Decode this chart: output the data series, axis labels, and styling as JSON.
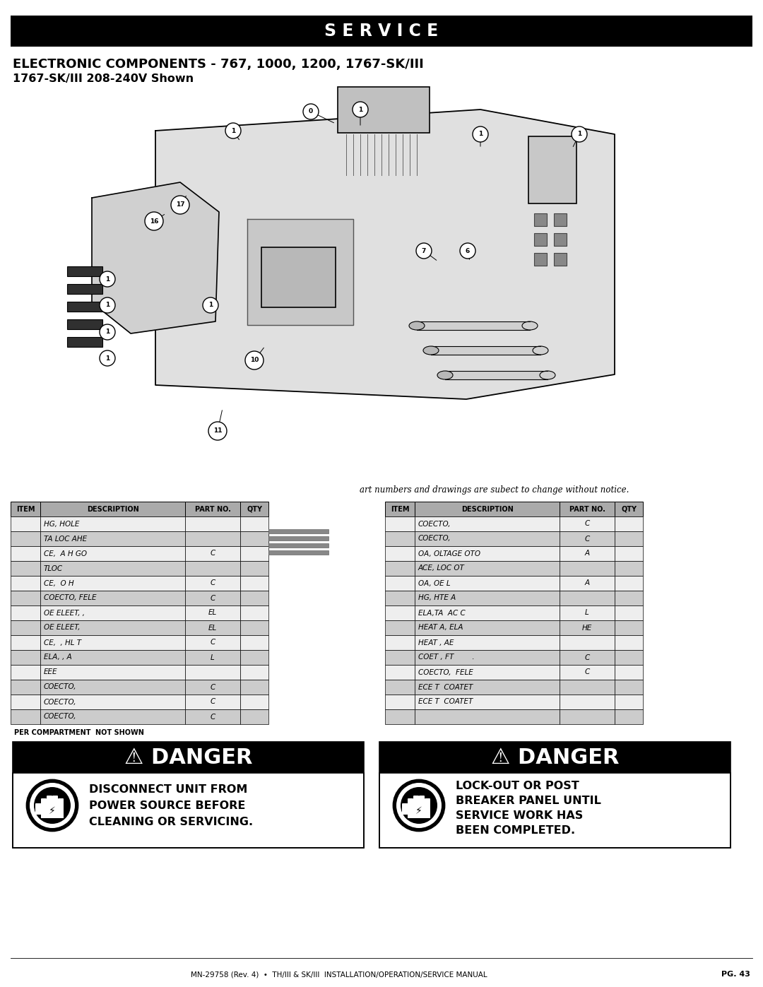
{
  "page_bg": "#ffffff",
  "header_bg": "#000000",
  "header_text": "S E R V I C E",
  "header_text_color": "#ffffff",
  "title_line1": "ELECTRONIC COMPONENTS - 767, 1000, 1200, 1767-SK/III",
  "title_line2": "1767-SK/III 208-240V Shown",
  "notice_text": "art numbers and drawings are subect to change without notice.",
  "table_header_bg": "#aaaaaa",
  "table_header_text_color": "#000000",
  "table_row_even_bg": "#cccccc",
  "table_row_odd_bg": "#eeeeee",
  "table_cols_left": [
    "ITEM",
    "DESCRIPTION",
    "PART NO.",
    "QTY"
  ],
  "table_cols_right": [
    "ITEM",
    "DESCRIPTION",
    "PART NO.",
    "QTY"
  ],
  "table_rows_left": [
    [
      "",
      "HG, HOLE",
      "",
      ""
    ],
    [
      "",
      "TA LOC AHE",
      "",
      ""
    ],
    [
      "",
      "CE,  A H GO",
      "C",
      ""
    ],
    [
      "",
      "TLOC",
      "",
      ""
    ],
    [
      "",
      "CE,  O H",
      "C",
      ""
    ],
    [
      "",
      "COECTO, FELE",
      "C",
      ""
    ],
    [
      "",
      "OE ELEET, ,",
      "EL",
      ""
    ],
    [
      "",
      "OE ELEET,",
      "EL",
      ""
    ],
    [
      "",
      "CE,  , HL T",
      "C",
      ""
    ],
    [
      "",
      "ELA, , A",
      "L",
      ""
    ],
    [
      "",
      "EEE",
      "",
      ""
    ],
    [
      "",
      "COECTO,",
      "C",
      ""
    ],
    [
      "",
      "COECTO,",
      "C",
      ""
    ],
    [
      "",
      "COECTO,",
      "C",
      ""
    ]
  ],
  "table_rows_right": [
    [
      "",
      "COECTO,",
      "C",
      ""
    ],
    [
      "",
      "COECTO,",
      "C",
      ""
    ],
    [
      "",
      "OA, OLTAGE OTO",
      "A",
      ""
    ],
    [
      "",
      "ACE, LOC OT",
      "",
      ""
    ],
    [
      "",
      "OA, OE L",
      "A",
      ""
    ],
    [
      "",
      "HG, HTE A",
      "",
      ""
    ],
    [
      "",
      "ELA,TA  AC C",
      "L",
      ""
    ],
    [
      "",
      "HEAT A, ELA",
      "HE",
      ""
    ],
    [
      "",
      "HEAT , AE",
      "",
      ""
    ],
    [
      "",
      "COET , FT        .",
      "C",
      ""
    ],
    [
      "",
      "COECTO,  FELE",
      "C",
      ""
    ],
    [
      "",
      "ECE T  COATET",
      "",
      ""
    ],
    [
      "",
      "ECE T  COATET",
      "",
      ""
    ],
    [
      "",
      "",
      "",
      ""
    ]
  ],
  "footnote_left": "PER COMPARTMENT",
  "footnote_right": "NOT SHOWN",
  "danger1_title": "⚠ DANGER",
  "danger1_line1": "DISCONNECT UNIT FROM",
  "danger1_line2": "POWER SOURCE BEFORE",
  "danger1_line3": "CLEANING OR SERVICING.",
  "danger2_title": "⚠ DANGER",
  "danger2_line1": "LOCK-OUT OR POST",
  "danger2_line2": "BREAKER PANEL UNTIL",
  "danger2_line3": "SERVICE WORK HAS",
  "danger2_line4": "BEEN COMPLETED.",
  "footer_text": "MN-29758 (Rev. 4)  •  TH/III & SK/III  INSTALLATION/OPERATION/SERVICE MANUAL",
  "footer_page": "PG. 43"
}
